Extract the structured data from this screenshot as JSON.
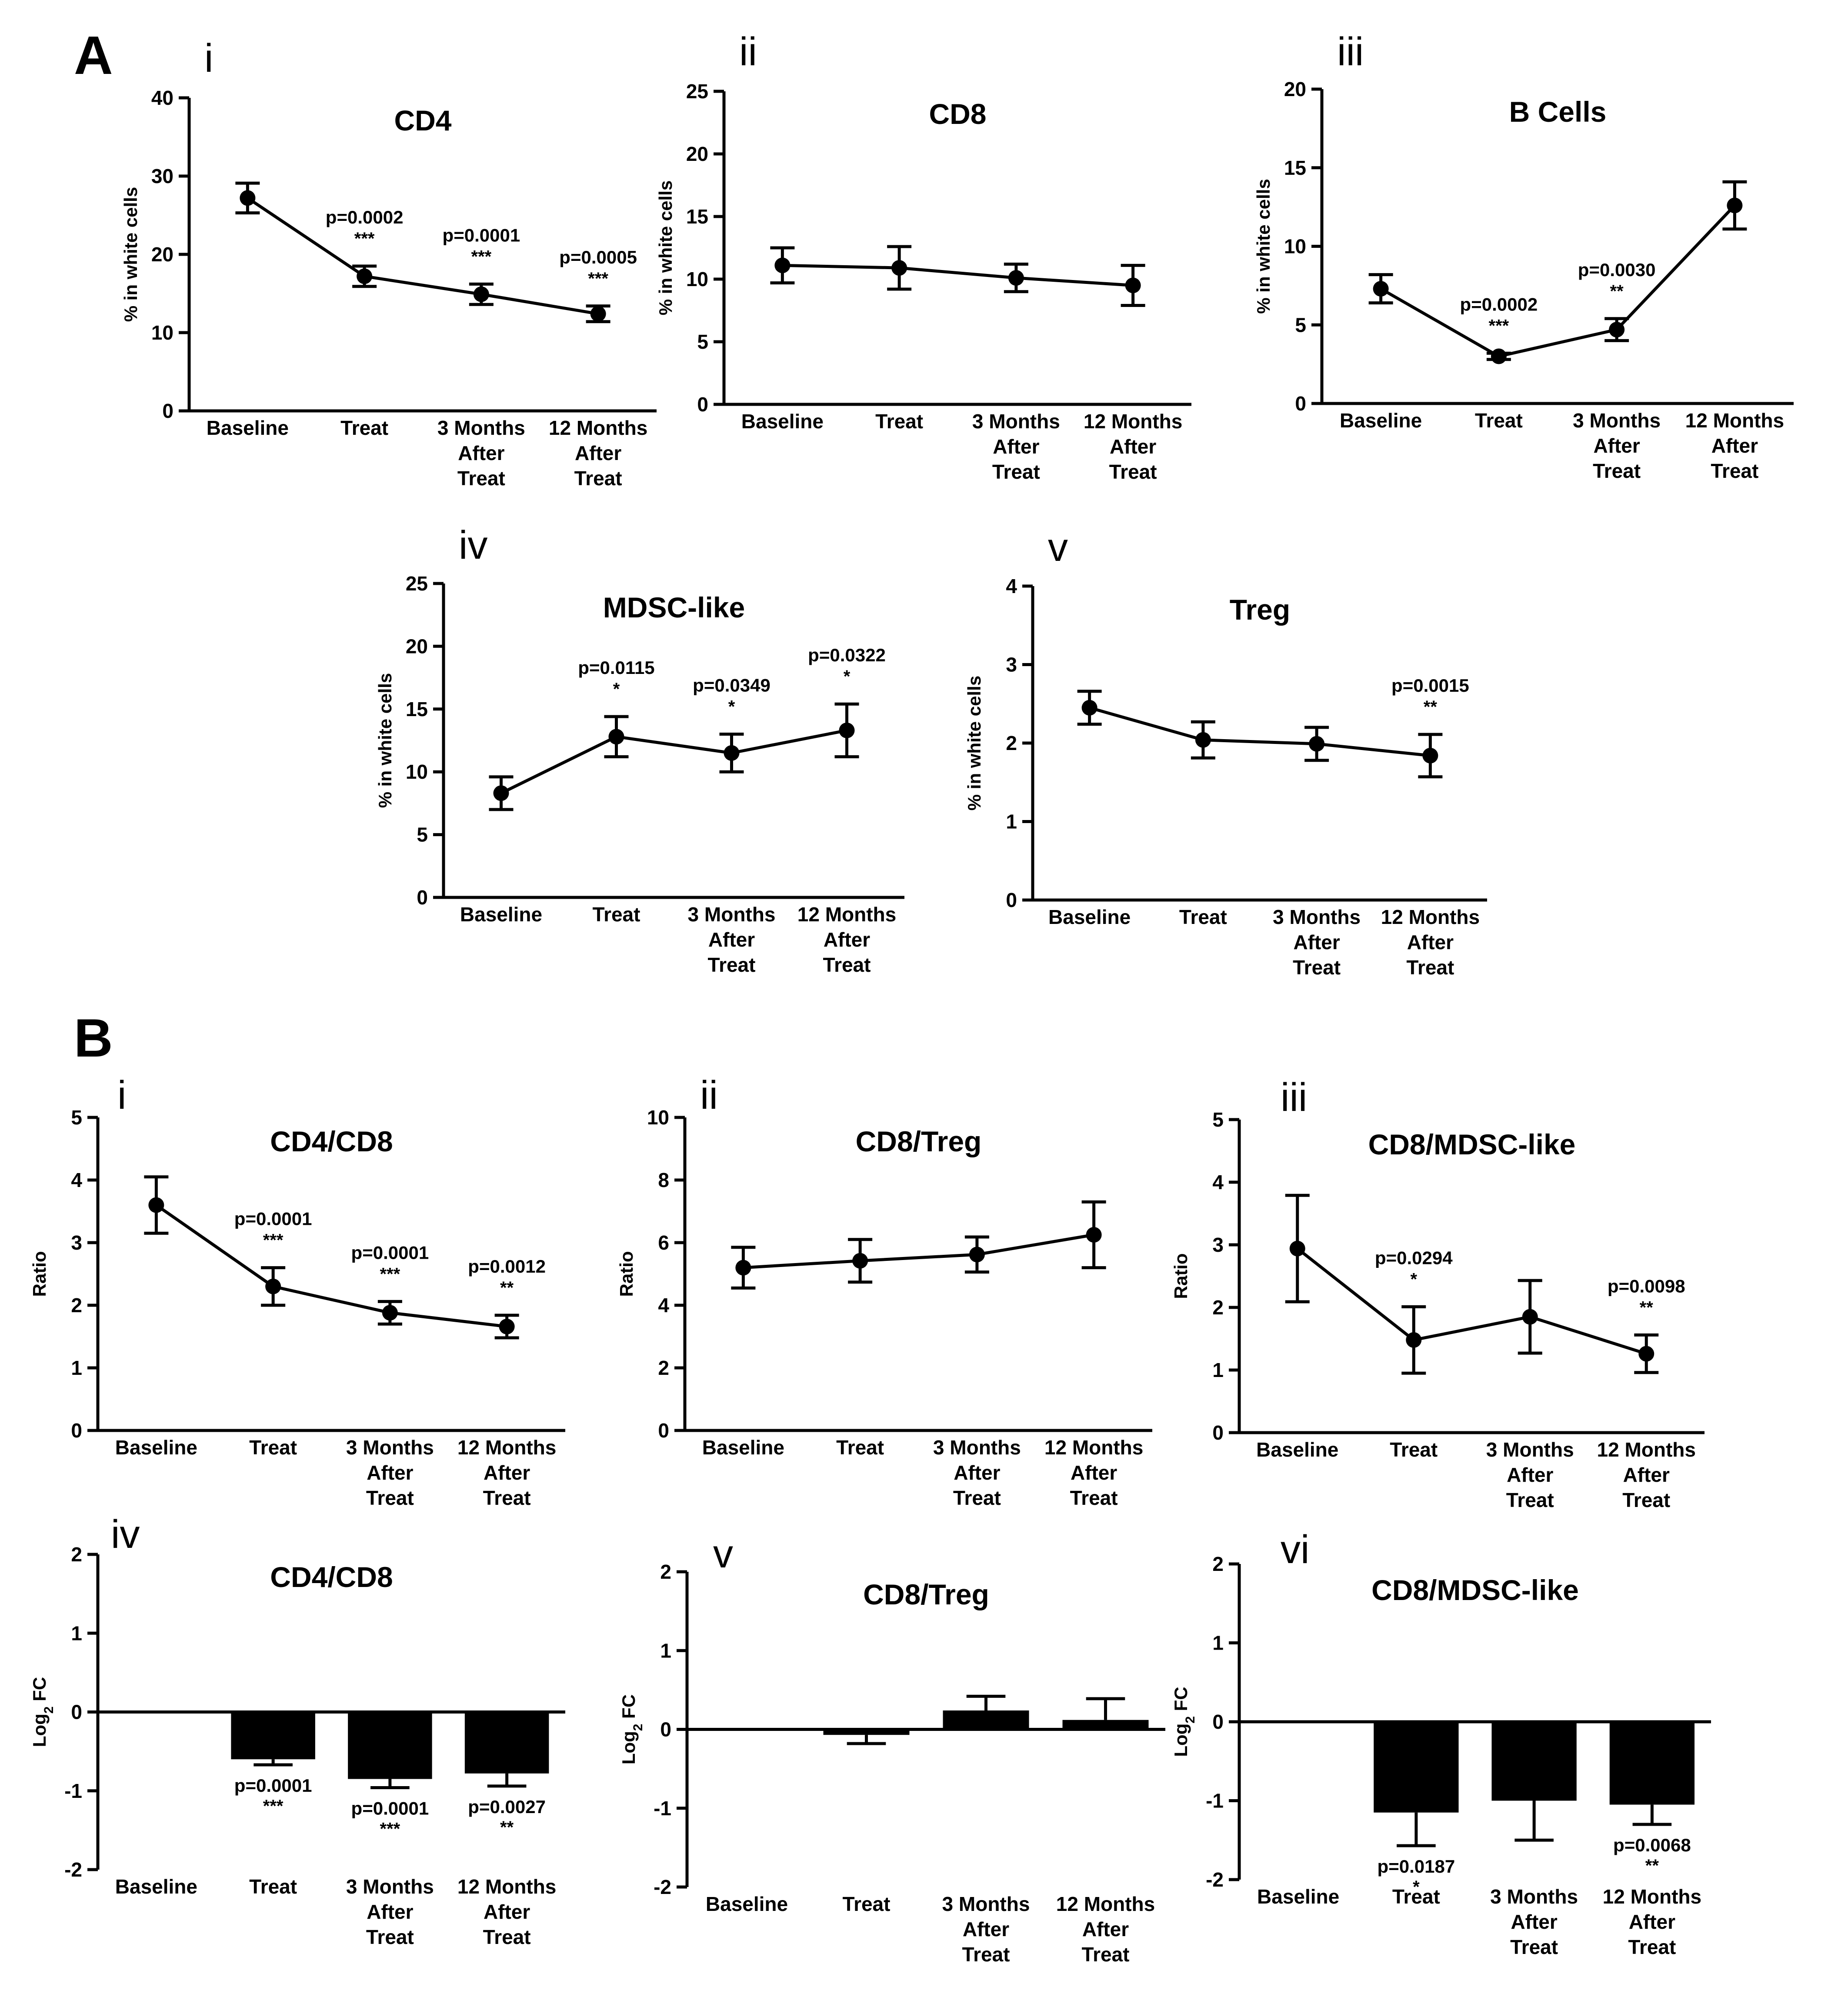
{
  "sections": [
    {
      "label": "A"
    },
    {
      "label": "B"
    }
  ],
  "chart_data": [
    {
      "id": "A-i",
      "panel": "i",
      "type": "line",
      "title": "CD4",
      "ylabel": "% in white cells",
      "ylim": [
        0,
        40
      ],
      "yticks": [
        0,
        10,
        20,
        30,
        40
      ],
      "categories": [
        "Baseline",
        "Treat",
        "3 Months After Treat",
        "12 Months After Treat"
      ],
      "values": [
        27.2,
        17.2,
        14.9,
        12.4
      ],
      "errors": [
        1.9,
        1.3,
        1.3,
        1.0
      ],
      "annotations": [
        null,
        {
          "p": "p=0.0002",
          "stars": "***"
        },
        {
          "p": "p=0.0001",
          "stars": "***"
        },
        {
          "p": "p=0.0005",
          "stars": "***"
        }
      ]
    },
    {
      "id": "A-ii",
      "panel": "ii",
      "type": "line",
      "title": "CD8",
      "ylabel": "% in white cells",
      "ylim": [
        0,
        25
      ],
      "yticks": [
        0,
        5,
        10,
        15,
        20,
        25
      ],
      "categories": [
        "Baseline",
        "Treat",
        "3 Months After Treat",
        "12 Months After Treat"
      ],
      "values": [
        11.1,
        10.9,
        10.1,
        9.5
      ],
      "errors": [
        1.4,
        1.7,
        1.1,
        1.6
      ],
      "annotations": [
        null,
        null,
        null,
        null
      ]
    },
    {
      "id": "A-iii",
      "panel": "iii",
      "type": "line",
      "title": "B Cells",
      "ylabel": "% in white cells",
      "ylim": [
        0,
        20
      ],
      "yticks": [
        0,
        5,
        10,
        15,
        20
      ],
      "categories": [
        "Baseline",
        "Treat",
        "3 Months After Treat",
        "12 Months After Treat"
      ],
      "values": [
        7.3,
        3.0,
        4.7,
        12.6
      ],
      "errors": [
        0.9,
        0.2,
        0.7,
        1.5
      ],
      "annotations": [
        null,
        {
          "p": "p=0.0002",
          "stars": "***"
        },
        {
          "p": "p=0.0030",
          "stars": "**"
        },
        null
      ]
    },
    {
      "id": "A-iv",
      "panel": "iv",
      "type": "line",
      "title": "MDSC-like",
      "ylabel": "% in white cells",
      "ylim": [
        0,
        25
      ],
      "yticks": [
        0,
        5,
        10,
        15,
        20,
        25
      ],
      "categories": [
        "Baseline",
        "Treat",
        "3 Months After Treat",
        "12 Months After Treat"
      ],
      "values": [
        8.3,
        12.8,
        11.5,
        13.3
      ],
      "errors": [
        1.3,
        1.6,
        1.5,
        2.1
      ],
      "annotations": [
        null,
        {
          "p": "p=0.0115",
          "stars": "*"
        },
        {
          "p": "p=0.0349",
          "stars": "*"
        },
        {
          "p": "p=0.0322",
          "stars": "*"
        }
      ]
    },
    {
      "id": "A-v",
      "panel": "v",
      "type": "line",
      "title": "Treg",
      "ylabel": "% in white cells",
      "ylim": [
        0,
        4
      ],
      "yticks": [
        0,
        1,
        2,
        3,
        4
      ],
      "categories": [
        "Baseline",
        "Treat",
        "3 Months After Treat",
        "12 Months After Treat"
      ],
      "values": [
        2.45,
        2.04,
        1.99,
        1.84
      ],
      "errors": [
        0.21,
        0.23,
        0.21,
        0.27
      ],
      "annotations": [
        null,
        null,
        null,
        {
          "p": "p=0.0015",
          "stars": "**"
        }
      ]
    },
    {
      "id": "B-i",
      "panel": "i",
      "type": "line",
      "title": "CD4/CD8",
      "ylabel": "Ratio",
      "ylim": [
        0,
        5
      ],
      "yticks": [
        0,
        1,
        2,
        3,
        4,
        5
      ],
      "categories": [
        "Baseline",
        "Treat",
        "3 Months After Treat",
        "12 Months After Treat"
      ],
      "values": [
        3.6,
        2.3,
        1.88,
        1.66
      ],
      "errors": [
        0.45,
        0.3,
        0.18,
        0.18
      ],
      "annotations": [
        null,
        {
          "p": "p=0.0001",
          "stars": "***"
        },
        {
          "p": "p=0.0001",
          "stars": "***"
        },
        {
          "p": "p=0.0012",
          "stars": "**"
        }
      ]
    },
    {
      "id": "B-ii",
      "panel": "ii",
      "type": "line",
      "title": "CD8/Treg",
      "ylabel": "Ratio",
      "ylim": [
        0,
        10
      ],
      "yticks": [
        0,
        2,
        4,
        6,
        8,
        10
      ],
      "categories": [
        "Baseline",
        "Treat",
        "3 Months After Treat",
        "12 Months After Treat"
      ],
      "values": [
        5.2,
        5.42,
        5.62,
        6.25
      ],
      "errors": [
        0.65,
        0.68,
        0.56,
        1.05
      ],
      "annotations": [
        null,
        null,
        null,
        null
      ]
    },
    {
      "id": "B-iii",
      "panel": "iii",
      "type": "line",
      "title": "CD8/MDSC-like",
      "ylabel": "Ratio",
      "ylim": [
        0,
        5
      ],
      "yticks": [
        0,
        1,
        2,
        3,
        4,
        5
      ],
      "categories": [
        "Baseline",
        "Treat",
        "3 Months After Treat",
        "12 Months After Treat"
      ],
      "values": [
        2.94,
        1.48,
        1.85,
        1.26
      ],
      "errors": [
        0.85,
        0.53,
        0.58,
        0.3
      ],
      "annotations": [
        null,
        {
          "p": "p=0.0294",
          "stars": "*"
        },
        null,
        {
          "p": "p=0.0098",
          "stars": "**"
        }
      ]
    },
    {
      "id": "B-iv",
      "panel": "iv",
      "type": "bar",
      "title": "CD4/CD8",
      "ylabel": "Log2 FC",
      "ylim": [
        -2,
        2
      ],
      "yticks": [
        -2,
        -1,
        0,
        1,
        2
      ],
      "categories": [
        "Baseline",
        "Treat",
        "3 Months After Treat",
        "12 Months After Treat"
      ],
      "values": [
        null,
        -0.6,
        -0.85,
        -0.78
      ],
      "errors": [
        null,
        0.07,
        0.11,
        0.16
      ],
      "annotations": [
        null,
        {
          "p": "p=0.0001",
          "stars": "***"
        },
        {
          "p": "p=0.0001",
          "stars": "***"
        },
        {
          "p": "p=0.0027",
          "stars": "**"
        }
      ]
    },
    {
      "id": "B-v",
      "panel": "v",
      "type": "bar",
      "title": "CD8/Treg",
      "ylabel": "Log2 FC",
      "ylim": [
        -2,
        2
      ],
      "yticks": [
        -2,
        -1,
        0,
        1,
        2
      ],
      "categories": [
        "Baseline",
        "Treat",
        "3 Months After Treat",
        "12 Months After Treat"
      ],
      "values": [
        null,
        -0.07,
        0.24,
        0.12
      ],
      "errors": [
        null,
        0.11,
        0.18,
        0.27
      ],
      "annotations": [
        null,
        null,
        null,
        null
      ]
    },
    {
      "id": "B-vi",
      "panel": "vi",
      "type": "bar",
      "title": "CD8/MDSC-like",
      "ylabel": "Log2 FC",
      "ylim": [
        -2,
        2
      ],
      "yticks": [
        -2,
        -1,
        0,
        1,
        2
      ],
      "categories": [
        "Baseline",
        "Treat",
        "3 Months After Treat",
        "12 Months After Treat"
      ],
      "values": [
        null,
        -1.15,
        -1.0,
        -1.05
      ],
      "errors": [
        null,
        0.42,
        0.5,
        0.25
      ],
      "annotations": [
        null,
        {
          "p": "p=0.0187",
          "stars": "*"
        },
        null,
        {
          "p": "p=0.0068",
          "stars": "**"
        }
      ]
    }
  ]
}
